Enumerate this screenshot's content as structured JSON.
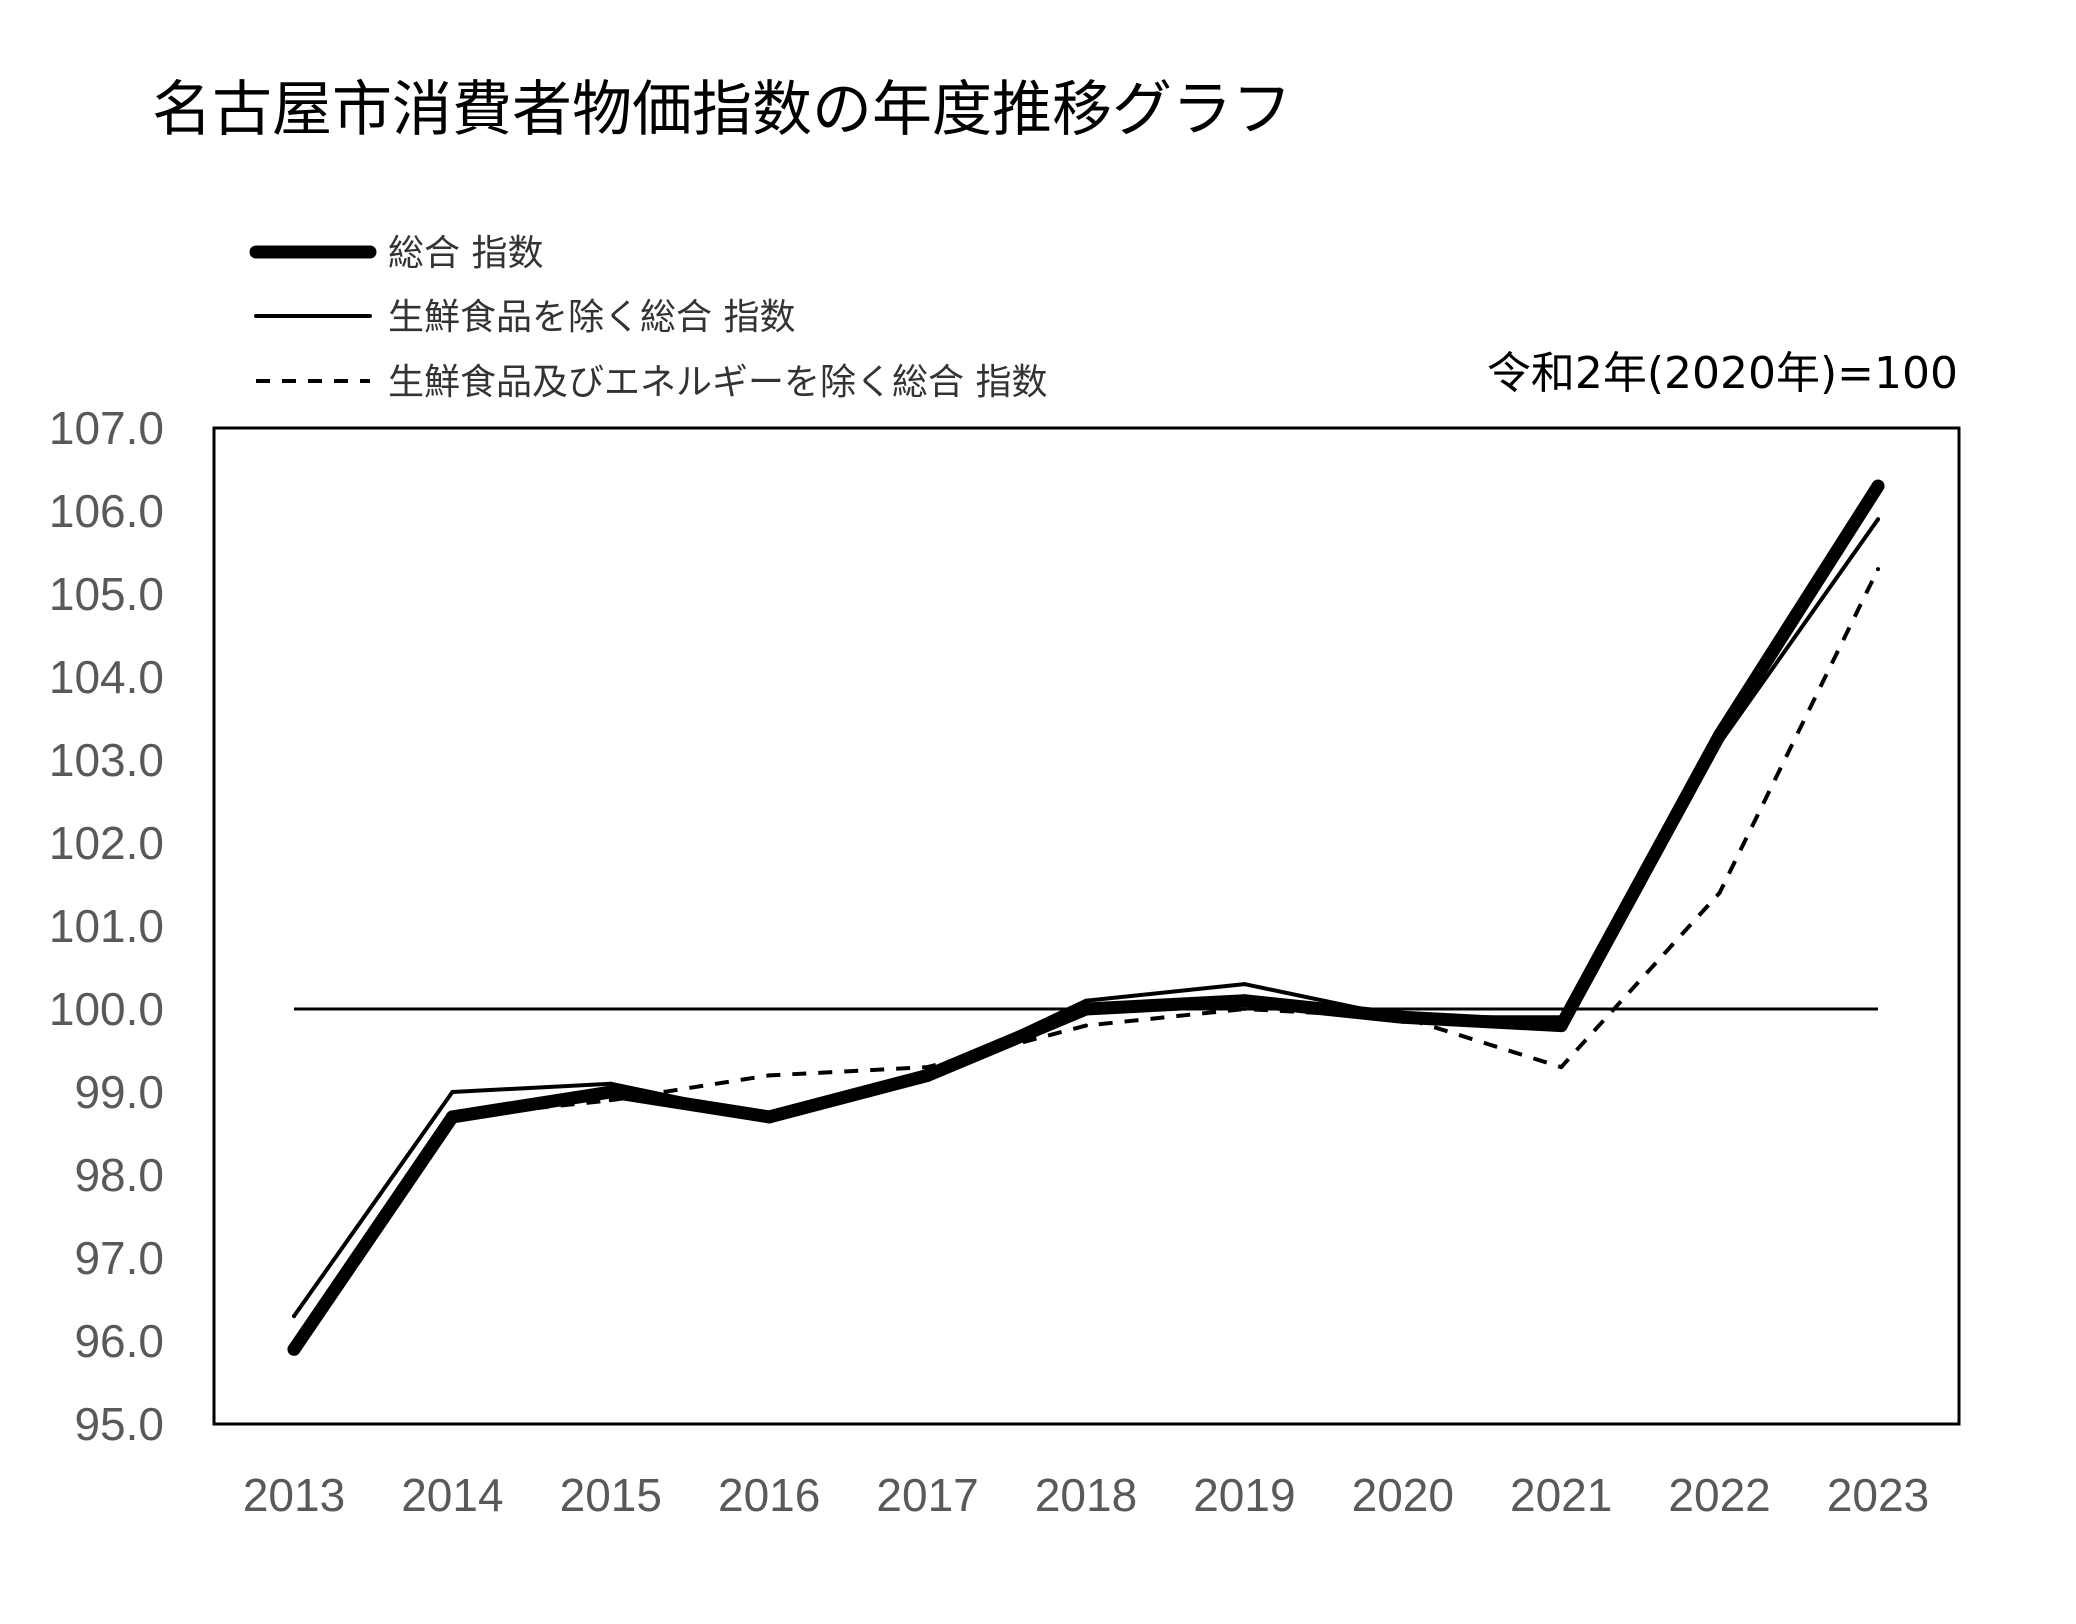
{
  "chart_data": {
    "type": "line",
    "title": "名古屋市消費者物価指数の年度推移グラフ",
    "base_note": "令和2年(2020年)=100",
    "categories": [
      "2013",
      "2014",
      "2015",
      "2016",
      "2017",
      "2018",
      "2019",
      "2020",
      "2021",
      "2022",
      "2023"
    ],
    "ylim": [
      95.0,
      107.0
    ],
    "yticks": [
      "95.0",
      "96.0",
      "97.0",
      "98.0",
      "99.0",
      "100.0",
      "101.0",
      "102.0",
      "103.0",
      "104.0",
      "105.0",
      "106.0",
      "107.0"
    ],
    "reference_line": 100.0,
    "grid": false,
    "legend_position": "top-left",
    "series": [
      {
        "name": "総合 指数",
        "style": "thick-solid",
        "color": "#000000",
        "values": [
          95.9,
          98.7,
          99.0,
          98.7,
          99.2,
          100.0,
          100.1,
          99.9,
          99.8,
          103.3,
          106.3
        ]
      },
      {
        "name": "生鮮食品を除く総合 指数",
        "style": "thin-solid",
        "color": "#000000",
        "values": [
          96.3,
          99.0,
          99.1,
          98.7,
          99.2,
          100.1,
          100.3,
          99.9,
          99.9,
          103.2,
          105.9
        ]
      },
      {
        "name": "生鮮食品及びエネルギーを除く総合 指数",
        "style": "dashed",
        "color": "#000000",
        "values": [
          95.9,
          98.7,
          98.9,
          99.2,
          99.3,
          99.8,
          100.0,
          99.9,
          99.3,
          101.4,
          105.3
        ]
      }
    ]
  }
}
